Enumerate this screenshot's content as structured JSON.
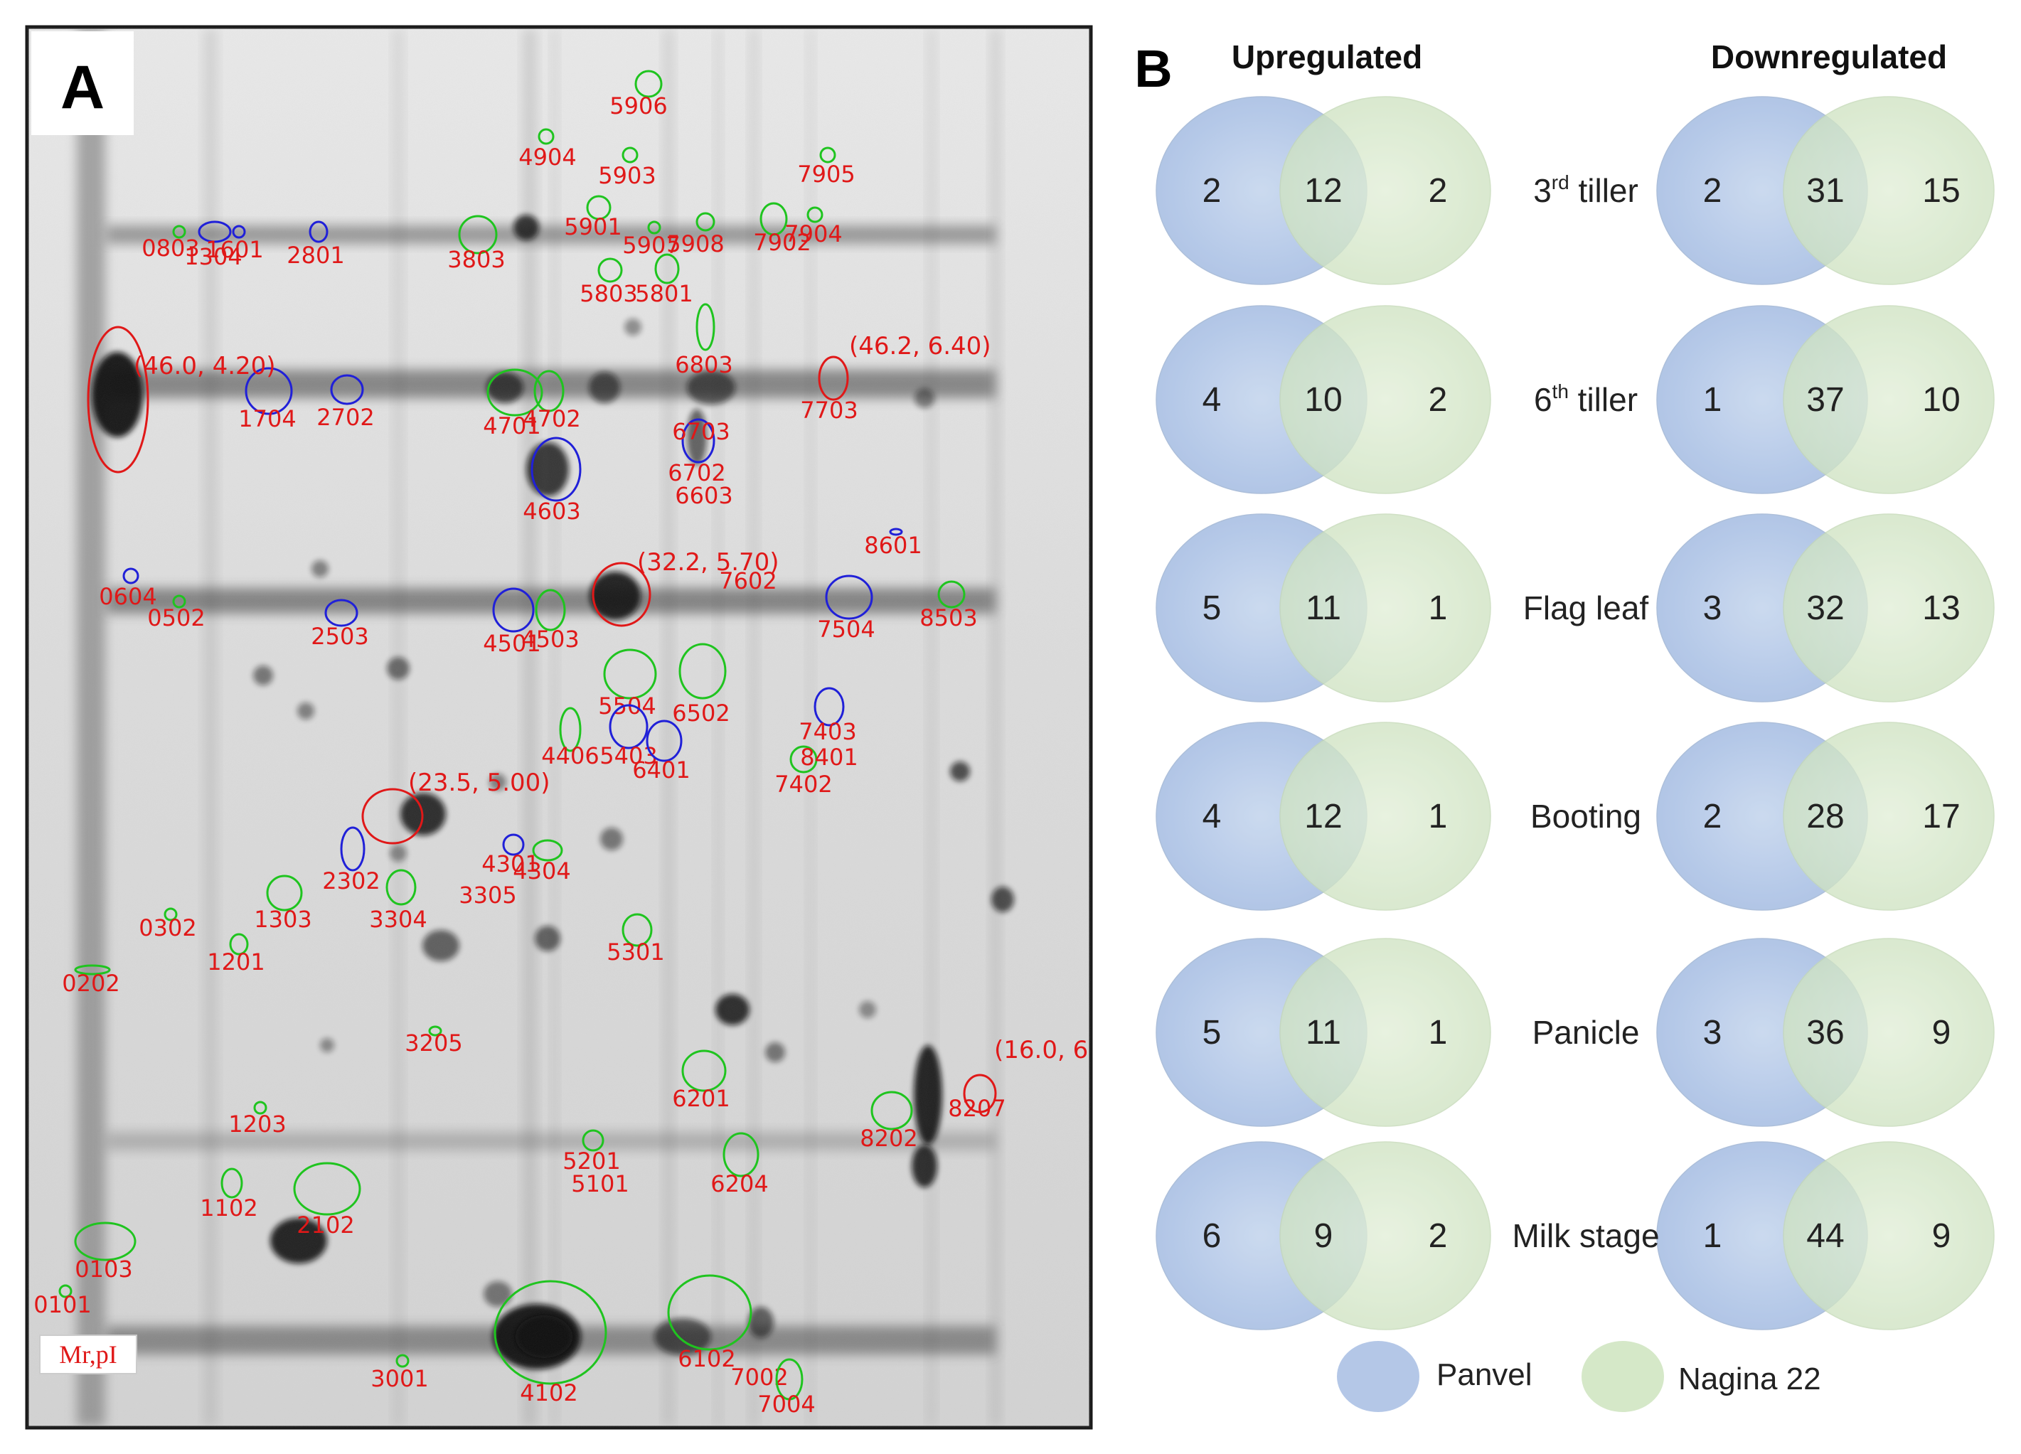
{
  "panel_a": {
    "letter": "A",
    "mr_pi_label": "Mr,pI",
    "spots": [
      {
        "label": "5906",
        "color": "green"
      },
      {
        "label": "4904",
        "color": "green"
      },
      {
        "label": "5903",
        "color": "green"
      },
      {
        "label": "7905",
        "color": "green"
      },
      {
        "label": "5901",
        "color": "green"
      },
      {
        "label": "0803",
        "color": "green"
      },
      {
        "label": "1304",
        "color": "blue"
      },
      {
        "label": "1601",
        "color": "blue"
      },
      {
        "label": "2801",
        "color": "blue"
      },
      {
        "label": "3803",
        "color": "green"
      },
      {
        "label": "5907",
        "color": "green"
      },
      {
        "label": "5908",
        "color": "green"
      },
      {
        "label": "7902",
        "color": "green"
      },
      {
        "label": "7904",
        "color": "green"
      },
      {
        "label": "5803",
        "color": "green"
      },
      {
        "label": "5801",
        "color": "green"
      },
      {
        "label": "6803",
        "color": "green"
      },
      {
        "label": "1704",
        "color": "blue"
      },
      {
        "label": "2702",
        "color": "blue"
      },
      {
        "label": "4701",
        "color": "green"
      },
      {
        "label": "4702",
        "color": "green"
      },
      {
        "label": "7703",
        "color": "red"
      },
      {
        "label": "6703",
        "color": "blue"
      },
      {
        "label": "6702",
        "color": "green"
      },
      {
        "label": "6603",
        "color": "green"
      },
      {
        "label": "4603",
        "color": "blue"
      },
      {
        "label": "8601",
        "color": "blue"
      },
      {
        "label": "7602",
        "color": "green"
      },
      {
        "label": "0604",
        "color": "blue"
      },
      {
        "label": "0502",
        "color": "green"
      },
      {
        "label": "2503",
        "color": "blue"
      },
      {
        "label": "4501",
        "color": "blue"
      },
      {
        "label": "4503",
        "color": "green"
      },
      {
        "label": "7504",
        "color": "blue"
      },
      {
        "label": "8503",
        "color": "green"
      },
      {
        "label": "5504",
        "color": "green"
      },
      {
        "label": "6502",
        "color": "green"
      },
      {
        "label": "4406",
        "color": "green"
      },
      {
        "label": "5403",
        "color": "blue"
      },
      {
        "label": "6401",
        "color": "blue"
      },
      {
        "label": "7403",
        "color": "blue"
      },
      {
        "label": "8401",
        "color": "green"
      },
      {
        "label": "7402",
        "color": "green"
      },
      {
        "label": "2302",
        "color": "blue"
      },
      {
        "label": "4301",
        "color": "blue"
      },
      {
        "label": "4304",
        "color": "green"
      },
      {
        "label": "3305",
        "color": "green"
      },
      {
        "label": "0302",
        "color": "green"
      },
      {
        "label": "1303",
        "color": "green"
      },
      {
        "label": "3304",
        "color": "green"
      },
      {
        "label": "1201",
        "color": "green"
      },
      {
        "label": "5301",
        "color": "green"
      },
      {
        "label": "0202",
        "color": "green"
      },
      {
        "label": "3205",
        "color": "green"
      },
      {
        "label": "6201",
        "color": "green"
      },
      {
        "label": "8207",
        "color": "red"
      },
      {
        "label": "1203",
        "color": "green"
      },
      {
        "label": "8202",
        "color": "green"
      },
      {
        "label": "5201",
        "color": "green"
      },
      {
        "label": "5101",
        "color": "green"
      },
      {
        "label": "6204",
        "color": "green"
      },
      {
        "label": "1102",
        "color": "green"
      },
      {
        "label": "2102",
        "color": "green"
      },
      {
        "label": "0103",
        "color": "green"
      },
      {
        "label": "0101",
        "color": "green"
      },
      {
        "label": "3001",
        "color": "green"
      },
      {
        "label": "4102",
        "color": "green"
      },
      {
        "label": "6102",
        "color": "green"
      },
      {
        "label": "7002",
        "color": "green"
      },
      {
        "label": "7004",
        "color": "green"
      }
    ],
    "markers": [
      {
        "label": "(46.0, 4.20)"
      },
      {
        "label": "(46.2, 6.40)"
      },
      {
        "label": "(32.2, 5.70)"
      },
      {
        "label": "(23.5, 5.00)"
      },
      {
        "label": "(16.0, 6"
      }
    ]
  },
  "panel_b": {
    "letter": "B",
    "col_headers": [
      "Upregulated",
      "Downregulated"
    ],
    "rows": [
      {
        "stage": "3",
        "stage_sup": "rd",
        "stage_rest": " tiller",
        "up": [
          2,
          12,
          2
        ],
        "down": [
          2,
          31,
          15
        ]
      },
      {
        "stage": "6",
        "stage_sup": "th",
        "stage_rest": " tiller",
        "up": [
          4,
          10,
          2
        ],
        "down": [
          1,
          37,
          10
        ]
      },
      {
        "stage": "Flag leaf",
        "stage_sup": "",
        "stage_rest": "",
        "up": [
          5,
          11,
          1
        ],
        "down": [
          3,
          32,
          13
        ]
      },
      {
        "stage": "Booting",
        "stage_sup": "",
        "stage_rest": "",
        "up": [
          4,
          12,
          1
        ],
        "down": [
          2,
          28,
          17
        ]
      },
      {
        "stage": "Panicle",
        "stage_sup": "",
        "stage_rest": "",
        "up": [
          5,
          11,
          1
        ],
        "down": [
          3,
          36,
          9
        ]
      },
      {
        "stage": "Milk stage",
        "stage_sup": "",
        "stage_rest": "",
        "up": [
          6,
          9,
          2
        ],
        "down": [
          1,
          44,
          9
        ]
      }
    ],
    "legend": [
      {
        "name": "Panvel",
        "color": "#b4c7e7"
      },
      {
        "name": "Nagina 22",
        "color": "#d5e8c8"
      }
    ]
  },
  "colors": {
    "green": "#1fc41f",
    "blue": "#2020d8",
    "red": "#e01818",
    "label_red": "#e01818"
  }
}
